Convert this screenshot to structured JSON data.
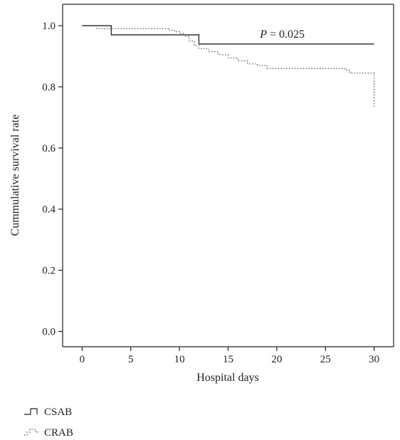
{
  "chart_data": {
    "type": "line",
    "title": "",
    "xlabel": "Hospital days",
    "ylabel": "Cummulative survival rate",
    "xlim": [
      -2,
      32
    ],
    "ylim": [
      -0.05,
      1.07
    ],
    "xticks": [
      0,
      5,
      10,
      15,
      20,
      25,
      30
    ],
    "yticks": [
      0.0,
      0.2,
      0.4,
      0.6,
      0.8,
      1.0
    ],
    "xtick_labels": [
      "0",
      "5",
      "10",
      "15",
      "20",
      "25",
      "30"
    ],
    "ytick_labels": [
      "0.0",
      "0.2",
      "0.4",
      "0.6",
      "0.8",
      "1.0"
    ],
    "grid": false,
    "legend_position": "bottom-left",
    "annotation": {
      "label": "P",
      "value": " = 0.025",
      "x": 19,
      "y": 1.0
    },
    "series": [
      {
        "name": "CSAB",
        "style": "solid",
        "color": "#222222",
        "steps": [
          [
            0,
            1.0
          ],
          [
            3,
            0.97
          ],
          [
            12,
            0.94
          ],
          [
            30,
            0.94
          ]
        ]
      },
      {
        "name": "CRAB",
        "style": "dotted",
        "color": "#444444",
        "steps": [
          [
            0,
            1.0
          ],
          [
            1.5,
            0.99
          ],
          [
            9,
            0.985
          ],
          [
            9.5,
            0.98
          ],
          [
            10,
            0.975
          ],
          [
            10.5,
            0.965
          ],
          [
            11,
            0.95
          ],
          [
            11.5,
            0.935
          ],
          [
            12,
            0.925
          ],
          [
            13,
            0.915
          ],
          [
            14,
            0.905
          ],
          [
            15,
            0.895
          ],
          [
            16,
            0.885
          ],
          [
            17,
            0.875
          ],
          [
            18,
            0.87
          ],
          [
            19,
            0.86
          ],
          [
            27,
            0.855
          ],
          [
            27.5,
            0.845
          ],
          [
            30,
            0.845
          ],
          [
            30,
            0.73
          ]
        ]
      }
    ]
  }
}
